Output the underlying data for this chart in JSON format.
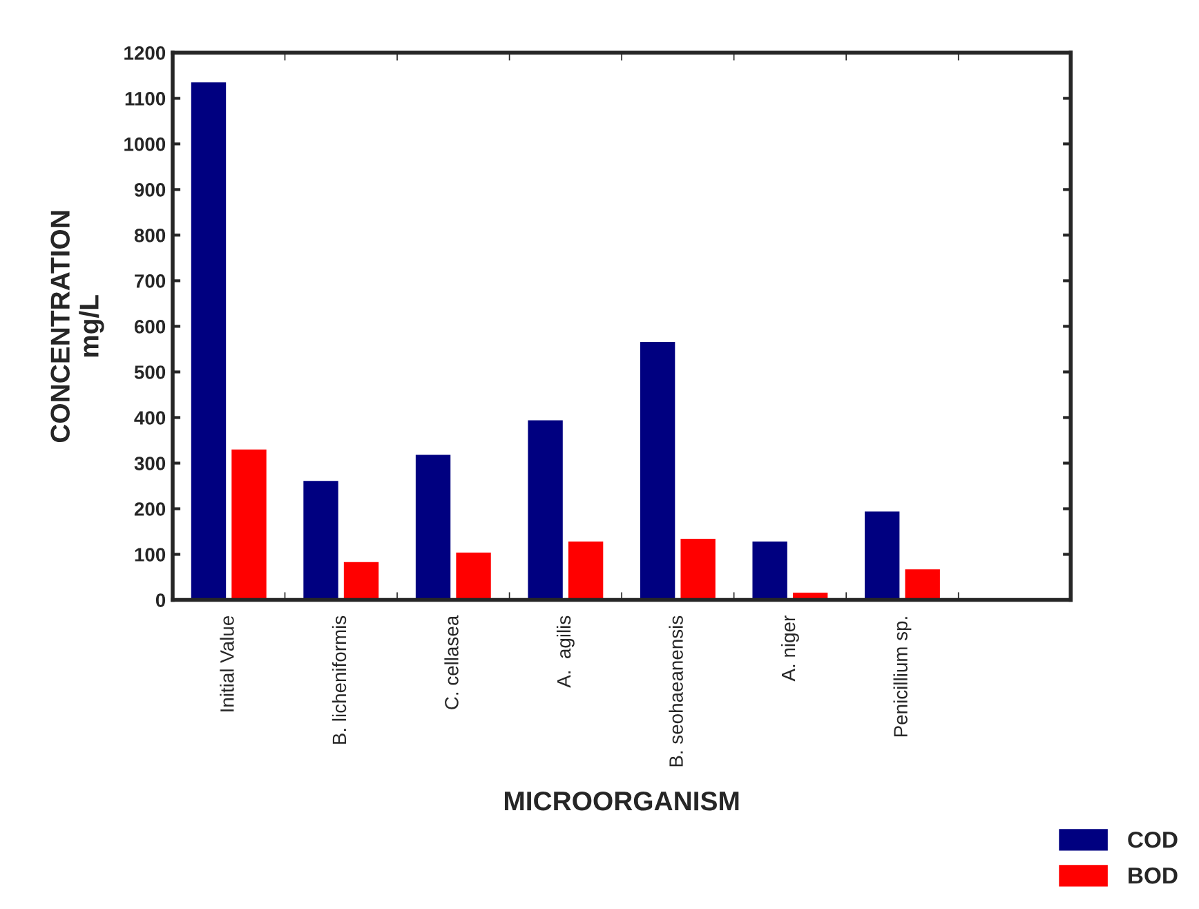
{
  "chart_data": {
    "type": "bar",
    "ylabel": "CONCENTRATION\nmg/L",
    "xlabel": "MICROORGANISM",
    "categories": [
      "Initial Value",
      "B. licheniformis",
      "C. cellasea",
      "A.  agilis",
      "B. seohaeanensis",
      "A. niger",
      "Penicillium sp.",
      null
    ],
    "series": [
      {
        "name": "COD",
        "color": "#000080",
        "values": [
          1135,
          261,
          318,
          394,
          566,
          128,
          194,
          null
        ]
      },
      {
        "name": "BOD",
        "color": "#ff0000",
        "values": [
          330,
          83,
          104,
          128,
          134,
          16,
          67,
          null
        ]
      }
    ],
    "ylim": [
      0,
      1200
    ],
    "yticks": [
      0,
      100,
      200,
      300,
      400,
      500,
      600,
      700,
      800,
      900,
      1000,
      1100,
      1200
    ],
    "grid": false,
    "legend": "bottom right"
  }
}
